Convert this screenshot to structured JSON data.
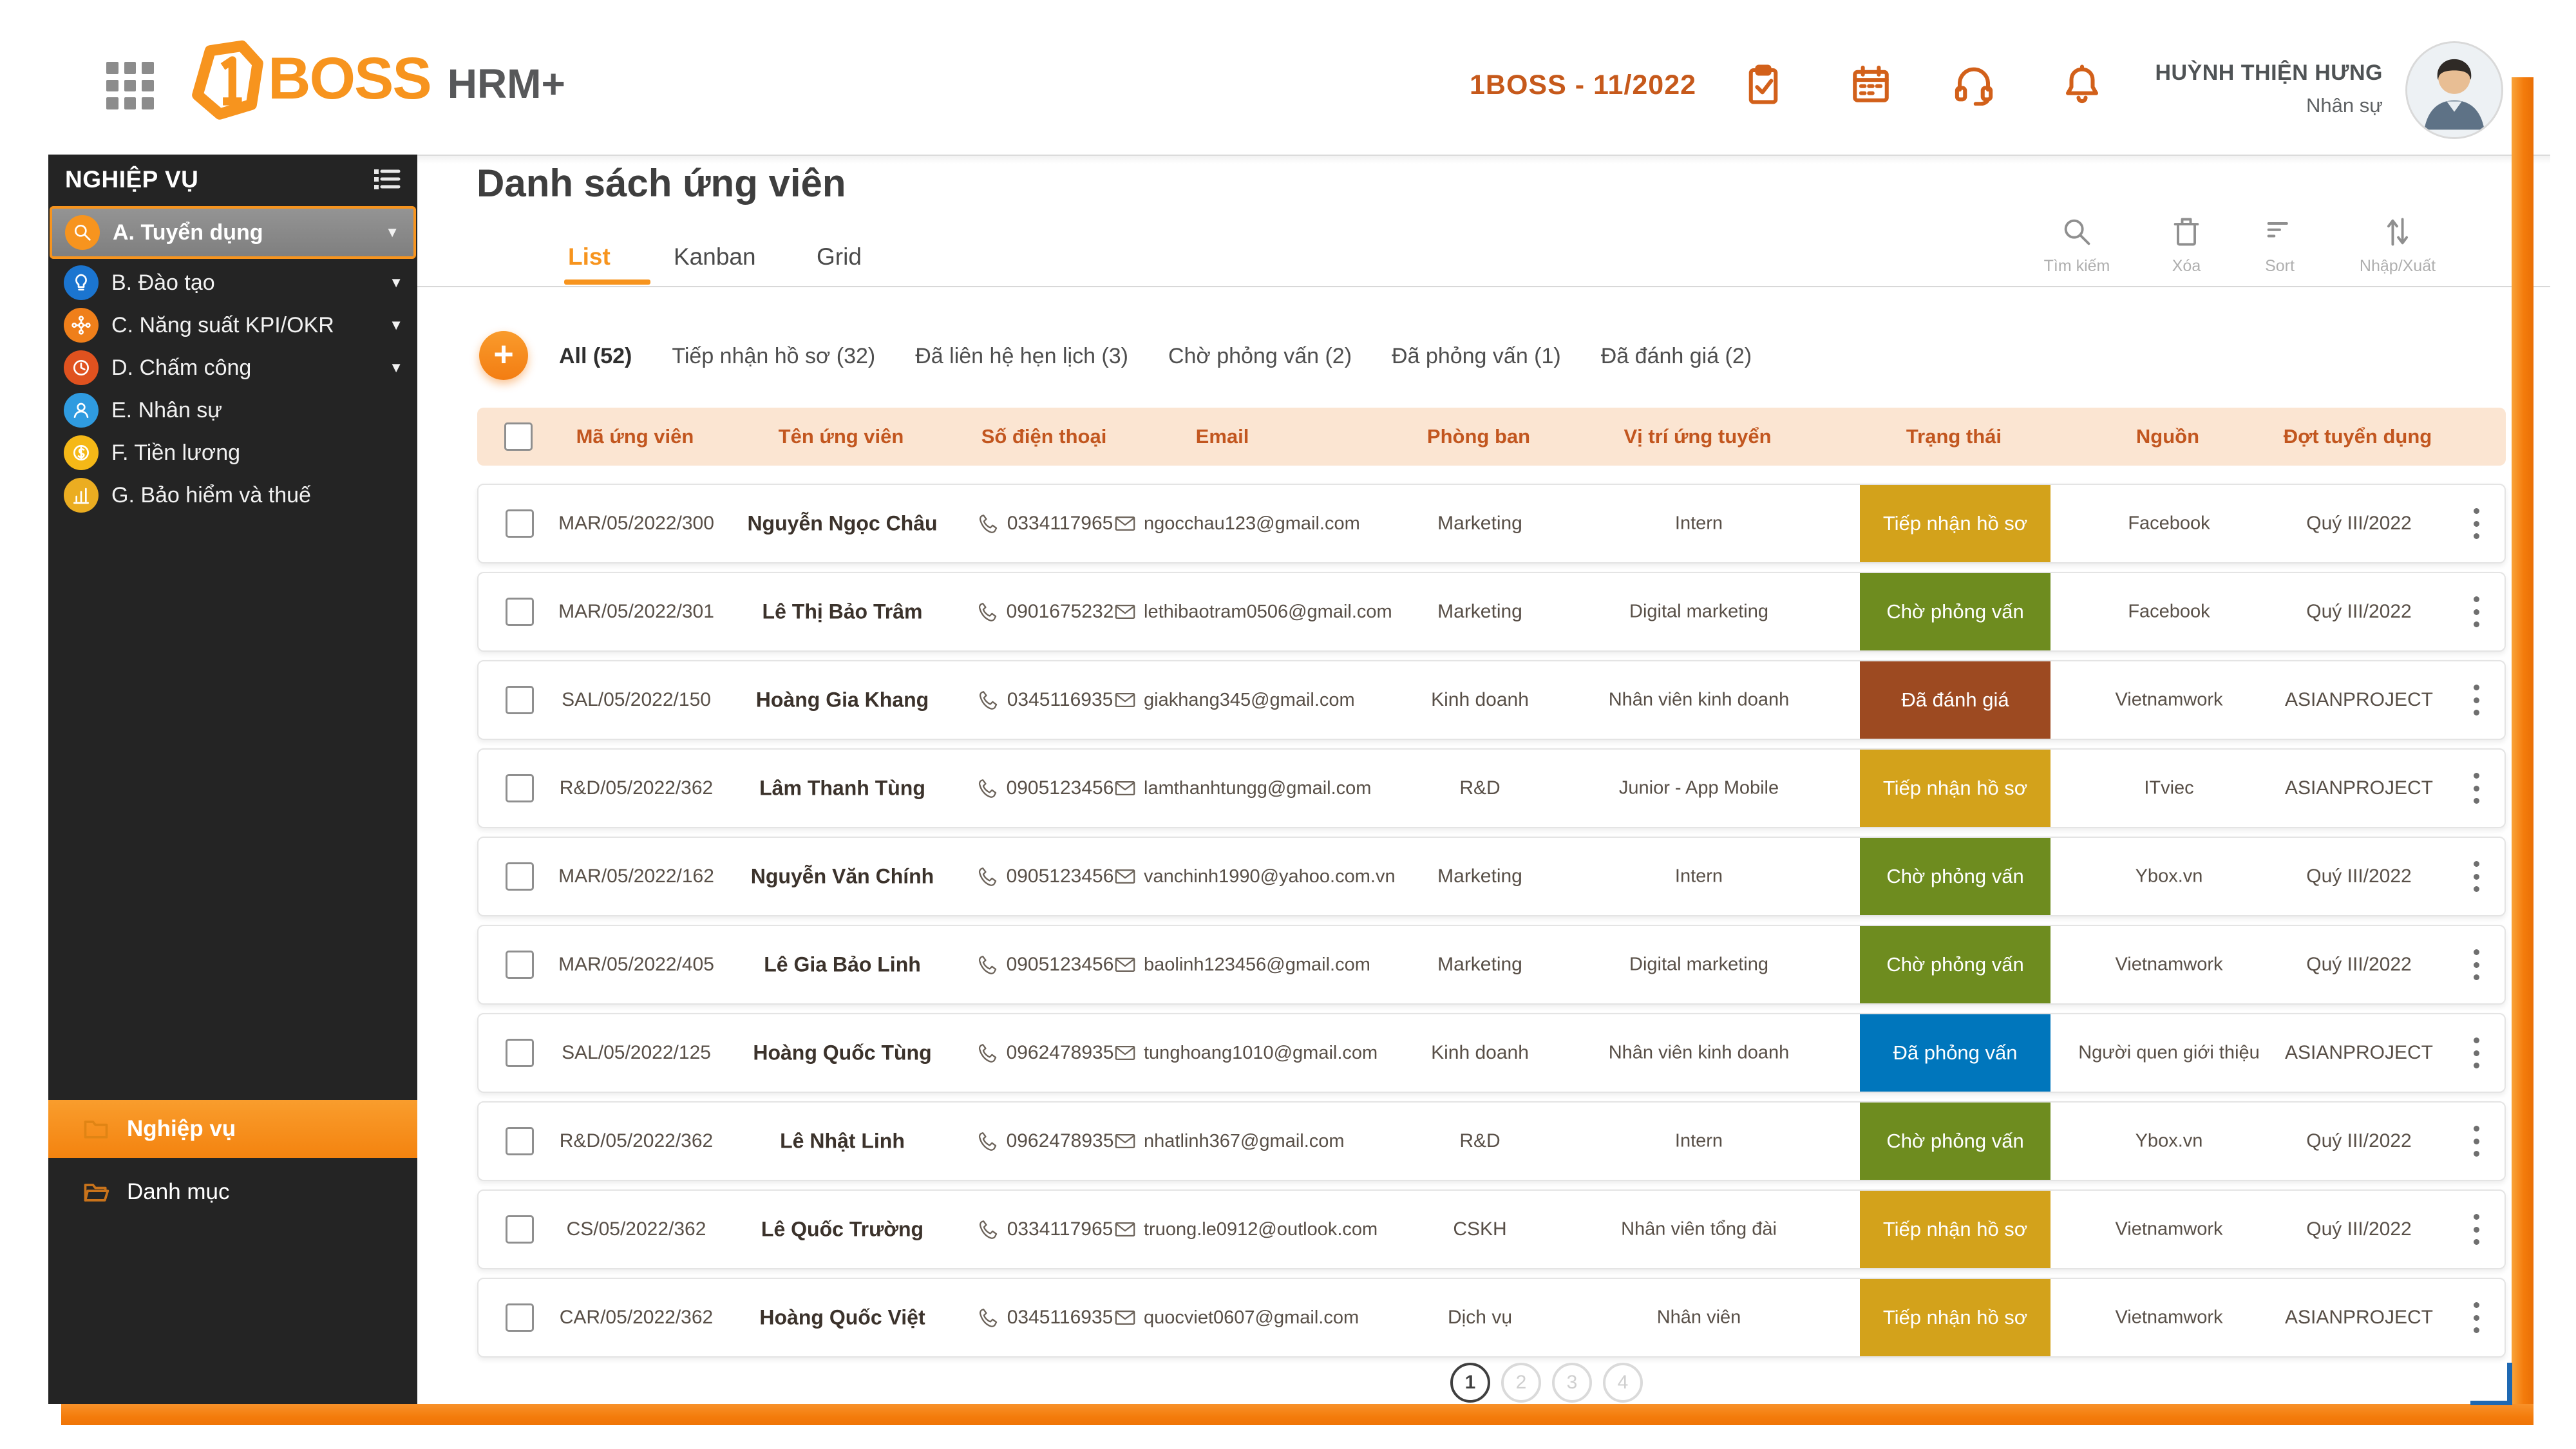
{
  "theme": {
    "brand": "#F7941E",
    "header_icon": "#D2601A",
    "context_title": "#C6591B",
    "sidebar_bg": "#242424",
    "table_header_bg": "#FBE5D2",
    "table_header_text": "#C2561F"
  },
  "header": {
    "logo": {
      "brand": "BOSS",
      "suffix": "HRM+"
    },
    "context_title": "1BOSS - 11/2022",
    "action_icons": [
      "clipboard-check-icon",
      "calendar-icon",
      "headset-icon",
      "bell-icon"
    ],
    "user": {
      "name": "HUỲNH THIỆN HƯNG",
      "role": "Nhân sự"
    }
  },
  "sidebar": {
    "title": "NGHIỆP VỤ",
    "items": [
      {
        "key": "tuyen-dung",
        "label": "A. Tuyển dụng",
        "icon": "search-icon",
        "color": "#F7941E",
        "expandable": true,
        "selected": true
      },
      {
        "key": "dao-tao",
        "label": "B. Đào tạo",
        "icon": "bulb-icon",
        "color": "#1B75D0",
        "expandable": true,
        "selected": false
      },
      {
        "key": "nang-suat-kpi-okr",
        "label": "C. Năng suất KPI/OKR",
        "icon": "network-icon",
        "color": "#EF7F1A",
        "expandable": true,
        "selected": false
      },
      {
        "key": "cham-cong",
        "label": "D. Chấm công",
        "icon": "clock-icon",
        "color": "#E0521F",
        "expandable": true,
        "selected": false
      },
      {
        "key": "nhan-su",
        "label": "E. Nhân sự",
        "icon": "people-icon",
        "color": "#2F9BE0",
        "expandable": false,
        "selected": false
      },
      {
        "key": "tien-luong",
        "label": "F. Tiền lương",
        "icon": "coin-icon",
        "color": "#F5B817",
        "expandable": false,
        "selected": false
      },
      {
        "key": "bao-hiem-va-thue",
        "label": "G. Bảo hiểm và thuế",
        "icon": "chart-icon",
        "color": "#EBAD21",
        "expandable": false,
        "selected": false
      }
    ],
    "footer_items": [
      {
        "key": "nghiep-vu",
        "label": "Nghiệp vụ",
        "icon": "folder-icon",
        "active": true
      },
      {
        "key": "danh-muc",
        "label": "Danh mục",
        "icon": "folder-open-icon",
        "active": false
      }
    ]
  },
  "main": {
    "page_title": "Danh sách ứng viên",
    "view_tabs": [
      {
        "label": "List",
        "active": true
      },
      {
        "label": "Kanban",
        "active": false
      },
      {
        "label": "Grid",
        "active": false
      }
    ],
    "toolbar": [
      {
        "key": "search",
        "label": "Tìm kiếm",
        "icon": "search-icon"
      },
      {
        "key": "delete",
        "label": "Xóa",
        "icon": "trash-icon"
      },
      {
        "key": "sort",
        "label": "Sort",
        "icon": "sort-icon"
      },
      {
        "key": "import-export",
        "label": "Nhập/Xuất",
        "icon": "import-export-icon"
      }
    ],
    "add_button_label": "+",
    "filters": [
      {
        "label": "All (52)",
        "active": true
      },
      {
        "label": "Tiếp nhận hồ sơ (32)",
        "active": false
      },
      {
        "label": "Đã liên hệ hẹn lịch (3)",
        "active": false
      },
      {
        "label": "Chờ phỏng vấn (2)",
        "active": false
      },
      {
        "label": "Đã phỏng vấn (1)",
        "active": false
      },
      {
        "label": "Đã đánh giá (2)",
        "active": false
      }
    ]
  },
  "table": {
    "columns": [
      "Mã ứng viên",
      "Tên ứng viên",
      "Số điện thoại",
      "Email",
      "Phòng ban",
      "Vị trí ứng tuyển",
      "Trạng thái",
      "Nguồn",
      "Đợt tuyển dụng"
    ],
    "status_colors": {
      "Tiếp nhận hồ sơ": "#D3A21B",
      "Chờ phỏng vấn": "#6E8C1F",
      "Đã đánh giá": "#9D4A21",
      "Đã phỏng vấn": "#0076BC"
    },
    "rows": [
      {
        "code": "MAR/05/2022/300",
        "name": "Nguyễn Ngọc Châu",
        "phone": "0334117965",
        "email": "ngocchau123@gmail.com",
        "department": "Marketing",
        "position": "Intern",
        "status": "Tiếp nhận hồ sơ",
        "source": "Facebook",
        "batch": "Quý III/2022"
      },
      {
        "code": "MAR/05/2022/301",
        "name": "Lê Thị Bảo Trâm",
        "phone": "0901675232",
        "email": "lethibaotram0506@gmail.com",
        "department": "Marketing",
        "position": "Digital marketing",
        "status": "Chờ phỏng vấn",
        "source": "Facebook",
        "batch": "Quý III/2022"
      },
      {
        "code": "SAL/05/2022/150",
        "name": "Hoàng Gia Khang",
        "phone": "0345116935",
        "email": "giakhang345@gmail.com",
        "department": "Kinh doanh",
        "position": "Nhân viên kinh doanh",
        "status": "Đã đánh giá",
        "source": "Vietnamwork",
        "batch": "ASIANPROJECT"
      },
      {
        "code": "R&D/05/2022/362",
        "name": "Lâm Thanh Tùng",
        "phone": "0905123456",
        "email": "lamthanhtungg@gmail.com",
        "department": "R&D",
        "position": "Junior - App Mobile",
        "status": "Tiếp nhận hồ sơ",
        "source": "ITviec",
        "batch": "ASIANPROJECT"
      },
      {
        "code": "MAR/05/2022/162",
        "name": "Nguyễn Văn Chính",
        "phone": "0905123456",
        "email": "vanchinh1990@yahoo.com.vn",
        "department": "Marketing",
        "position": "Intern",
        "status": "Chờ phỏng vấn",
        "source": "Ybox.vn",
        "batch": "Quý III/2022"
      },
      {
        "code": "MAR/05/2022/405",
        "name": "Lê Gia Bảo Linh",
        "phone": "0905123456",
        "email": "baolinh123456@gmail.com",
        "department": "Marketing",
        "position": "Digital marketing",
        "status": "Chờ phỏng vấn",
        "source": "Vietnamwork",
        "batch": "Quý III/2022"
      },
      {
        "code": "SAL/05/2022/125",
        "name": "Hoàng Quốc Tùng",
        "phone": "0962478935",
        "email": "tunghoang1010@gmail.com",
        "department": "Kinh doanh",
        "position": "Nhân viên kinh doanh",
        "status": "Đã phỏng vấn",
        "source": "Người quen giới thiệu",
        "batch": "ASIANPROJECT"
      },
      {
        "code": "R&D/05/2022/362",
        "name": "Lê Nhật Linh",
        "phone": "0962478935",
        "email": "nhatlinh367@gmail.com",
        "department": "R&D",
        "position": "Intern",
        "status": "Chờ phỏng vấn",
        "source": "Ybox.vn",
        "batch": "Quý III/2022"
      },
      {
        "code": "CS/05/2022/362",
        "name": "Lê Quốc Trường",
        "phone": "0334117965",
        "email": "truong.le0912@outlook.com",
        "department": "CSKH",
        "position": "Nhân viên tổng đài",
        "status": "Tiếp nhận hồ sơ",
        "source": "Vietnamwork",
        "batch": "Quý III/2022"
      },
      {
        "code": "CAR/05/2022/362",
        "name": "Hoàng Quốc Việt",
        "phone": "0345116935",
        "email": "quocviet0607@gmail.com",
        "department": "Dịch vụ",
        "position": "Nhân viên",
        "status": "Tiếp nhận hồ sơ",
        "source": "Vietnamwork",
        "batch": "ASIANPROJECT"
      }
    ]
  },
  "pagination": {
    "pages": [
      "1",
      "2",
      "3",
      "4"
    ],
    "current": "1"
  }
}
